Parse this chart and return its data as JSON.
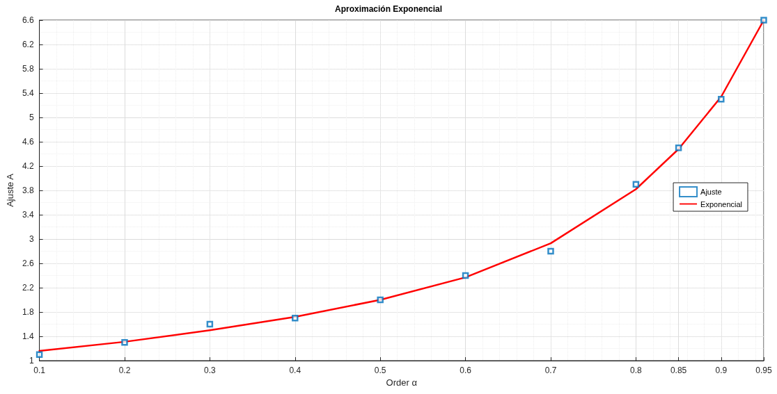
{
  "chart_data": {
    "type": "scatter",
    "title": "Aproximación Exponencial",
    "xlabel": "Order α",
    "ylabel": "Ajuste A",
    "x": [
      0.1,
      0.2,
      0.3,
      0.4,
      0.5,
      0.6,
      0.7,
      0.8,
      0.85,
      0.9,
      0.95
    ],
    "series": [
      {
        "name": "Ajuste",
        "color": "#0072bd",
        "values": [
          1.1,
          1.3,
          1.6,
          1.7,
          2.0,
          2.4,
          2.8,
          3.9,
          4.5,
          5.3,
          6.6
        ]
      },
      {
        "name": "Exponencial",
        "type": "line",
        "marker": "none",
        "color": "#ff0000",
        "values": [
          1.16,
          1.31,
          1.5,
          1.72,
          2.0,
          2.37,
          2.93,
          3.82,
          4.48,
          5.34,
          6.6
        ]
      }
    ],
    "xlim": [
      0.1,
      0.95
    ],
    "xticks": [
      0.1,
      0.2,
      0.3,
      0.4,
      0.5,
      0.6,
      0.7,
      0.8,
      0.85,
      0.9,
      0.95
    ],
    "ylim": [
      1,
      6.6
    ],
    "yticks": [
      1,
      1.4,
      1.8,
      2.2,
      2.6,
      3,
      3.4,
      3.8,
      4.2,
      4.6,
      5,
      5.4,
      5.8,
      6.2,
      6.6
    ],
    "grid": true,
    "legend": "right",
    "marker": "square",
    "line_style": "solid"
  }
}
